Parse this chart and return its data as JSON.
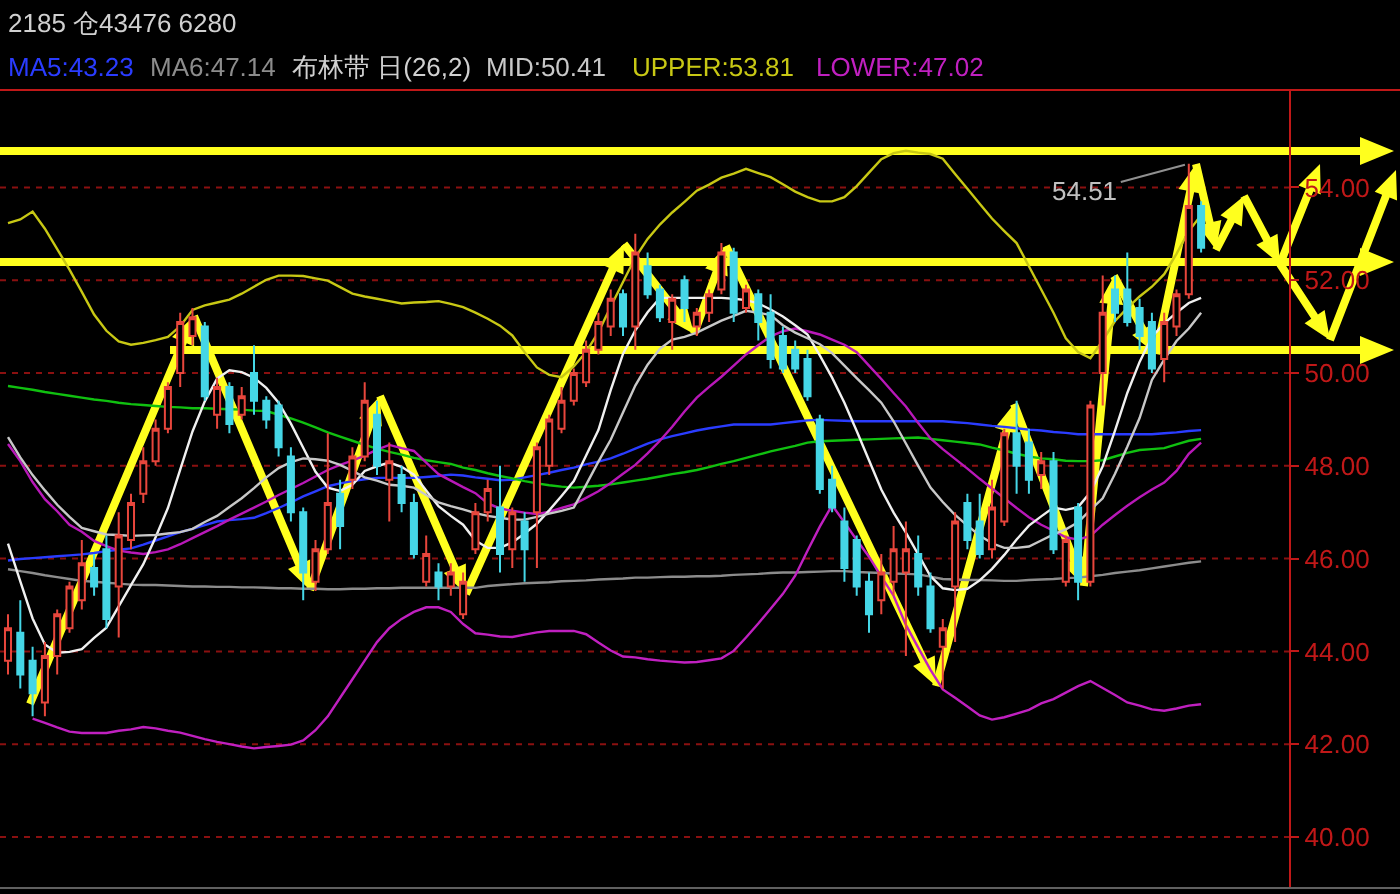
{
  "chart_data": {
    "type": "candlestick",
    "annotations": [
      "2185 仓43476 6280",
      "54.51"
    ],
    "legend": "top left",
    "legend_title": "布林带 日(26,2)",
    "tick_labels": "y",
    "grid": "y",
    "categories": [
      null,
      null,
      null,
      null,
      null,
      null,
      null,
      null,
      null,
      null,
      null,
      null,
      null,
      null,
      null,
      null,
      null,
      null,
      null,
      null,
      null,
      null,
      null,
      null,
      null,
      null,
      null,
      null,
      null,
      null,
      null,
      null,
      null,
      null,
      null,
      null,
      null,
      null,
      null,
      null,
      null,
      null,
      null,
      null,
      null,
      null,
      null,
      null,
      null,
      null,
      null,
      null,
      null,
      null,
      null,
      null,
      null,
      null,
      null,
      null,
      null,
      null,
      null,
      null,
      null,
      null,
      null,
      null,
      null,
      null,
      null,
      null,
      null,
      null,
      null,
      null,
      null,
      null,
      null,
      null,
      null,
      null,
      null,
      null,
      null,
      null,
      null,
      null,
      null,
      null,
      null,
      null,
      null,
      null,
      null,
      null,
      null,
      null
    ],
    "ohlc": [
      [
        43.8,
        44.8,
        43.5,
        44.5
      ],
      [
        44.4,
        45.1,
        43.2,
        43.5
      ],
      [
        43.8,
        44.1,
        42.6,
        43.1
      ],
      [
        42.9,
        44.2,
        42.6,
        43.9
      ],
      [
        43.9,
        44.9,
        43.5,
        44.8
      ],
      [
        44.5,
        45.5,
        44.4,
        45.4
      ],
      [
        45.1,
        46.4,
        44.9,
        45.9
      ],
      [
        45.8,
        46.1,
        45.2,
        45.4
      ],
      [
        46.2,
        46.5,
        44.5,
        44.7
      ],
      [
        45.4,
        47.0,
        44.3,
        46.5
      ],
      [
        46.4,
        47.4,
        46.2,
        47.2
      ],
      [
        47.4,
        48.4,
        47.2,
        48.1
      ],
      [
        48.1,
        49.0,
        48.0,
        48.8
      ],
      [
        48.8,
        49.8,
        48.7,
        49.7
      ],
      [
        50.0,
        51.3,
        49.7,
        51.1
      ],
      [
        50.8,
        51.4,
        50.6,
        51.2
      ],
      [
        51.0,
        51.1,
        49.4,
        49.5
      ],
      [
        49.1,
        49.9,
        48.8,
        49.7
      ],
      [
        49.7,
        49.8,
        48.7,
        48.9
      ],
      [
        49.1,
        49.7,
        49.0,
        49.5
      ],
      [
        50.0,
        50.6,
        49.1,
        49.4
      ],
      [
        49.4,
        49.5,
        48.8,
        49.0
      ],
      [
        49.3,
        49.4,
        48.2,
        48.4
      ],
      [
        48.2,
        48.4,
        46.8,
        47.0
      ],
      [
        47.0,
        47.1,
        45.1,
        45.7
      ],
      [
        45.5,
        46.4,
        45.3,
        46.2
      ],
      [
        46.2,
        48.7,
        46.1,
        47.2
      ],
      [
        47.4,
        47.7,
        46.2,
        46.7
      ],
      [
        47.7,
        48.4,
        47.5,
        48.2
      ],
      [
        48.2,
        49.8,
        48.1,
        49.4
      ],
      [
        49.1,
        49.4,
        47.8,
        48.0
      ],
      [
        47.7,
        48.5,
        46.8,
        48.1
      ],
      [
        47.8,
        48.0,
        47.0,
        47.2
      ],
      [
        47.2,
        47.4,
        46.0,
        46.1
      ],
      [
        45.5,
        46.5,
        45.4,
        46.1
      ],
      [
        45.7,
        45.9,
        45.1,
        45.4
      ],
      [
        45.4,
        45.9,
        45.2,
        45.7
      ],
      [
        44.8,
        45.7,
        44.7,
        45.5
      ],
      [
        46.2,
        47.2,
        46.1,
        47.0
      ],
      [
        47.0,
        47.7,
        46.8,
        47.5
      ],
      [
        47.1,
        48.0,
        45.7,
        46.1
      ],
      [
        46.2,
        47.1,
        45.8,
        47.0
      ],
      [
        46.8,
        47.0,
        45.5,
        46.2
      ],
      [
        47.0,
        48.5,
        45.8,
        48.4
      ],
      [
        48.0,
        49.1,
        47.8,
        49.0
      ],
      [
        48.8,
        49.7,
        48.7,
        49.4
      ],
      [
        49.4,
        50.1,
        49.3,
        50.0
      ],
      [
        49.8,
        50.7,
        49.7,
        50.5
      ],
      [
        50.5,
        51.3,
        50.4,
        51.1
      ],
      [
        51.0,
        51.8,
        50.8,
        51.6
      ],
      [
        51.7,
        51.8,
        50.8,
        51.0
      ],
      [
        51.0,
        53.0,
        50.5,
        52.6
      ],
      [
        52.3,
        52.6,
        51.6,
        51.7
      ],
      [
        51.8,
        51.9,
        51.1,
        51.2
      ],
      [
        51.1,
        51.7,
        50.5,
        51.6
      ],
      [
        52.0,
        52.1,
        51.1,
        51.4
      ],
      [
        51.0,
        51.4,
        50.8,
        51.3
      ],
      [
        51.3,
        51.8,
        51.1,
        51.7
      ],
      [
        51.8,
        52.8,
        51.7,
        52.6
      ],
      [
        52.6,
        52.7,
        51.1,
        51.3
      ],
      [
        51.4,
        51.9,
        51.3,
        51.8
      ],
      [
        51.7,
        51.8,
        50.7,
        51.1
      ],
      [
        51.3,
        51.7,
        50.1,
        50.3
      ],
      [
        50.8,
        51.0,
        50.0,
        50.1
      ],
      [
        50.5,
        50.7,
        50.0,
        50.1
      ],
      [
        50.3,
        50.5,
        49.4,
        49.5
      ],
      [
        49.0,
        49.1,
        47.4,
        47.5
      ],
      [
        47.7,
        48.0,
        47.0,
        47.1
      ],
      [
        46.8,
        47.1,
        45.5,
        45.8
      ],
      [
        46.4,
        46.5,
        45.2,
        45.4
      ],
      [
        45.5,
        45.7,
        44.4,
        44.8
      ],
      [
        45.1,
        46.1,
        44.8,
        45.7
      ],
      [
        45.5,
        46.7,
        45.2,
        46.2
      ],
      [
        45.7,
        46.8,
        43.9,
        46.2
      ],
      [
        46.1,
        46.5,
        45.2,
        45.4
      ],
      [
        45.4,
        45.7,
        44.4,
        44.5
      ],
      [
        44.1,
        44.7,
        43.2,
        44.5
      ],
      [
        45.4,
        47.0,
        44.2,
        46.8
      ],
      [
        47.2,
        47.4,
        46.2,
        46.4
      ],
      [
        46.8,
        47.4,
        46.0,
        46.1
      ],
      [
        46.2,
        47.7,
        46.0,
        47.1
      ],
      [
        46.8,
        48.8,
        46.7,
        48.7
      ],
      [
        48.7,
        49.4,
        47.4,
        48.0
      ],
      [
        48.5,
        48.8,
        47.4,
        47.7
      ],
      [
        47.8,
        48.3,
        47.5,
        48.1
      ],
      [
        48.1,
        48.3,
        46.1,
        46.2
      ],
      [
        45.5,
        46.5,
        45.4,
        46.4
      ],
      [
        47.1,
        47.2,
        45.1,
        45.5
      ],
      [
        45.5,
        49.4,
        45.4,
        49.3
      ],
      [
        50.0,
        52.1,
        49.3,
        51.3
      ],
      [
        51.8,
        52.1,
        51.1,
        51.3
      ],
      [
        51.8,
        52.6,
        51.0,
        51.1
      ],
      [
        51.4,
        51.6,
        50.5,
        50.8
      ],
      [
        51.1,
        51.3,
        50.0,
        50.1
      ],
      [
        50.3,
        51.3,
        49.8,
        51.1
      ],
      [
        51.0,
        51.8,
        50.8,
        51.7
      ],
      [
        51.7,
        54.51,
        51.6,
        53.6
      ],
      [
        53.6,
        53.7,
        52.6,
        52.7
      ]
    ],
    "colors": [
      "#e8463c",
      "#45d6e6",
      "#45d6e6",
      "#e8463c",
      "#e8463c",
      "#e8463c",
      "#e8463c",
      "#45d6e6",
      "#45d6e6",
      "#e8463c",
      "#e8463c",
      "#e8463c",
      "#e8463c",
      "#e8463c",
      "#e8463c",
      "#e8463c",
      "#45d6e6",
      "#e8463c",
      "#45d6e6",
      "#e8463c",
      "#45d6e6",
      "#45d6e6",
      "#45d6e6",
      "#45d6e6",
      "#45d6e6",
      "#e8463c",
      "#e8463c",
      "#45d6e6",
      "#e8463c",
      "#e8463c",
      "#45d6e6",
      "#e8463c",
      "#45d6e6",
      "#45d6e6",
      "#e8463c",
      "#45d6e6",
      "#e8463c",
      "#e8463c",
      "#e8463c",
      "#e8463c",
      "#45d6e6",
      "#e8463c",
      "#45d6e6",
      "#e8463c",
      "#e8463c",
      "#e8463c",
      "#e8463c",
      "#e8463c",
      "#e8463c",
      "#e8463c",
      "#45d6e6",
      "#e8463c",
      "#45d6e6",
      "#45d6e6",
      "#e8463c",
      "#45d6e6",
      "#e8463c",
      "#e8463c",
      "#e8463c",
      "#45d6e6",
      "#e8463c",
      "#45d6e6",
      "#45d6e6",
      "#45d6e6",
      "#45d6e6",
      "#45d6e6",
      "#45d6e6",
      "#45d6e6",
      "#45d6e6",
      "#45d6e6",
      "#45d6e6",
      "#e8463c",
      "#e8463c",
      "#e8463c",
      "#45d6e6",
      "#45d6e6",
      "#e8463c",
      "#e8463c",
      "#45d6e6",
      "#45d6e6",
      "#e8463c",
      "#e8463c",
      "#45d6e6",
      "#45d6e6",
      "#e8463c",
      "#45d6e6",
      "#e8463c",
      "#45d6e6",
      "#e8463c",
      "#e8463c",
      "#45d6e6",
      "#45d6e6",
      "#45d6e6",
      "#45d6e6",
      "#e8463c",
      "#e8463c",
      "#e8463c",
      "#45d6e6"
    ],
    "ylim": [
      38.9,
      56.1
    ],
    "yticks": [
      {
        "value": 40,
        "label": "40.00"
      },
      {
        "value": 42,
        "label": "42.00"
      },
      {
        "value": 44,
        "label": "44.00"
      },
      {
        "value": 46,
        "label": "46.00"
      },
      {
        "value": 48,
        "label": "48.00"
      },
      {
        "value": 50,
        "label": "50.00"
      },
      {
        "value": 52,
        "label": "52.00"
      },
      {
        "value": 54,
        "label": "54.00"
      }
    ],
    "series": [
      {
        "name": "MA5:43.23",
        "type": "line",
        "color": "#2a3cff",
        "values": [
          45.96,
          45.99,
          46.01,
          46.03,
          46.05,
          46.07,
          46.09,
          46.12,
          46.16,
          46.19,
          46.22,
          46.3,
          46.39,
          46.48,
          46.57,
          46.64,
          46.72,
          46.8,
          46.83,
          46.85,
          46.88,
          46.98,
          47.09,
          47.21,
          47.34,
          47.45,
          47.56,
          47.62,
          47.67,
          47.71,
          47.74,
          47.74,
          47.74,
          47.74,
          47.76,
          47.78,
          47.81,
          47.79,
          47.75,
          47.72,
          47.69,
          47.7,
          47.75,
          47.8,
          47.85,
          47.91,
          47.96,
          48.03,
          48.09,
          48.16,
          48.26,
          48.37,
          48.48,
          48.57,
          48.64,
          48.7,
          48.76,
          48.81,
          48.85,
          48.89,
          48.89,
          48.89,
          48.89,
          48.92,
          48.95,
          48.98,
          48.99,
          48.98,
          48.97,
          48.96,
          48.96,
          48.96,
          48.96,
          48.96,
          48.96,
          48.96,
          48.96,
          48.94,
          48.92,
          48.89,
          48.86,
          48.84,
          48.81,
          48.78,
          48.76,
          48.73,
          48.71,
          48.68,
          48.68,
          48.68,
          48.68,
          48.68,
          48.68,
          48.68,
          48.7,
          48.72,
          48.75,
          48.77
        ]
      },
      {
        "name": "MA6:47.14",
        "type": "line",
        "color": "#8c8c8c",
        "values": [
          45.77,
          45.73,
          45.69,
          45.64,
          45.6,
          45.56,
          45.52,
          45.5,
          45.48,
          45.46,
          45.44,
          45.43,
          45.43,
          45.42,
          45.41,
          45.4,
          45.4,
          45.39,
          45.39,
          45.38,
          45.38,
          45.37,
          45.36,
          45.36,
          45.35,
          45.35,
          45.34,
          45.34,
          45.35,
          45.35,
          45.36,
          45.36,
          45.37,
          45.37,
          45.37,
          45.37,
          45.37,
          45.37,
          45.37,
          45.41,
          45.43,
          45.45,
          45.47,
          45.48,
          45.49,
          45.51,
          45.52,
          45.53,
          45.55,
          45.56,
          45.57,
          45.59,
          45.59,
          45.6,
          45.61,
          45.61,
          45.62,
          45.62,
          45.63,
          45.65,
          45.66,
          45.67,
          45.69,
          45.7,
          45.7,
          45.71,
          45.72,
          45.73,
          45.73,
          45.71,
          45.7,
          45.69,
          45.68,
          45.67,
          45.66,
          45.61,
          45.56,
          45.55,
          45.54,
          45.54,
          45.53,
          45.52,
          45.52,
          45.54,
          45.55,
          45.56,
          45.58,
          45.59,
          45.62,
          45.65,
          45.69,
          45.72,
          45.75,
          45.79,
          45.83,
          45.87,
          45.91,
          45.94
        ]
      },
      {
        "type": "line",
        "color": "#10c010",
        "values": [
          49.72,
          49.68,
          49.64,
          49.59,
          49.55,
          49.51,
          49.47,
          49.43,
          49.4,
          49.36,
          49.33,
          49.31,
          49.29,
          49.27,
          49.26,
          49.24,
          49.24,
          49.23,
          49.22,
          49.21,
          49.19,
          49.18,
          49.1,
          49.02,
          48.93,
          48.83,
          48.72,
          48.63,
          48.54,
          48.45,
          48.37,
          48.3,
          48.24,
          48.17,
          48.12,
          48.08,
          48.04,
          47.96,
          47.91,
          47.84,
          47.78,
          47.73,
          47.67,
          47.62,
          47.58,
          47.55,
          47.53,
          47.55,
          47.57,
          47.6,
          47.64,
          47.68,
          47.72,
          47.77,
          47.82,
          47.86,
          47.91,
          47.97,
          48.04,
          48.1,
          48.17,
          48.24,
          48.31,
          48.37,
          48.43,
          48.5,
          48.53,
          48.54,
          48.55,
          48.56,
          48.57,
          48.58,
          48.59,
          48.6,
          48.61,
          48.58,
          48.55,
          48.52,
          48.49,
          48.46,
          48.39,
          48.33,
          48.26,
          48.2,
          48.16,
          48.14,
          48.11,
          48.1,
          48.1,
          48.12,
          48.2,
          48.28,
          48.34,
          48.36,
          48.38,
          48.46,
          48.54,
          48.58
        ]
      },
      {
        "type": "line",
        "color": "#b818b8",
        "values": [
          48.47,
          48.1,
          47.65,
          47.28,
          47.02,
          46.73,
          46.58,
          46.38,
          46.27,
          46.17,
          46.13,
          46.1,
          46.14,
          46.2,
          46.31,
          46.44,
          46.57,
          46.7,
          46.84,
          46.97,
          47.1,
          47.23,
          47.37,
          47.5,
          47.63,
          47.77,
          47.91,
          48.02,
          48.11,
          48.22,
          48.35,
          48.45,
          48.38,
          48.32,
          48.07,
          47.82,
          47.68,
          47.54,
          47.41,
          47.19,
          47.08,
          47.03,
          46.99,
          46.96,
          47.01,
          47.09,
          47.17,
          47.31,
          47.45,
          47.63,
          47.83,
          48.02,
          48.27,
          48.54,
          48.84,
          49.17,
          49.47,
          49.7,
          49.92,
          50.16,
          50.4,
          50.6,
          50.79,
          50.9,
          50.96,
          50.9,
          50.83,
          50.72,
          50.61,
          50.45,
          50.16,
          49.87,
          49.57,
          49.28,
          48.92,
          48.59,
          48.36,
          48.15,
          47.94,
          47.72,
          47.51,
          47.3,
          47.09,
          46.89,
          46.73,
          46.6,
          46.46,
          46.41,
          46.49,
          46.73,
          46.94,
          47.14,
          47.32,
          47.49,
          47.64,
          47.89,
          48.26,
          48.5
        ]
      },
      {
        "type": "line",
        "color": "#f0f0f0",
        "values": [
          46.32,
          45.51,
          44.71,
          44.15,
          43.97,
          43.99,
          44.05,
          44.29,
          44.51,
          44.97,
          45.43,
          45.88,
          46.46,
          47.09,
          47.92,
          48.74,
          49.39,
          49.88,
          50.06,
          50.02,
          49.9,
          49.68,
          49.36,
          48.91,
          48.39,
          47.87,
          47.53,
          47.46,
          47.59,
          47.89,
          47.99,
          48.07,
          47.98,
          47.81,
          47.47,
          47.13,
          46.92,
          46.73,
          46.39,
          46.23,
          46.23,
          46.35,
          46.54,
          46.75,
          47.04,
          47.35,
          47.67,
          48.22,
          48.77,
          49.63,
          50.41,
          50.92,
          51.31,
          51.62,
          51.62,
          51.62,
          51.62,
          51.62,
          51.62,
          51.6,
          51.57,
          51.5,
          51.37,
          51.22,
          51.03,
          50.83,
          50.38,
          49.9,
          49.36,
          48.75,
          48.12,
          47.49,
          46.99,
          46.56,
          46.09,
          45.62,
          45.36,
          45.32,
          45.35,
          45.53,
          45.78,
          46.08,
          46.41,
          46.71,
          46.91,
          47.1,
          47.05,
          47.11,
          47.43,
          47.99,
          48.76,
          49.57,
          50.24,
          50.78,
          51.07,
          51.3,
          51.51,
          51.62
        ]
      },
      {
        "name": "MID:50.41",
        "type": "line",
        "color": "#c8c8c8",
        "values": [
          48.62,
          48.18,
          47.8,
          47.47,
          47.16,
          46.9,
          46.66,
          46.59,
          46.52,
          46.51,
          46.49,
          46.5,
          46.51,
          46.54,
          46.57,
          46.64,
          46.79,
          46.92,
          47.11,
          47.3,
          47.52,
          47.75,
          47.95,
          48.08,
          48.16,
          48.14,
          48.11,
          48.02,
          47.89,
          47.75,
          47.68,
          47.59,
          47.57,
          47.53,
          47.37,
          47.21,
          47.13,
          47.06,
          46.98,
          46.92,
          46.88,
          46.84,
          46.84,
          46.9,
          46.97,
          47.03,
          47.1,
          47.59,
          48.09,
          48.56,
          49.15,
          49.73,
          50.18,
          50.52,
          50.72,
          50.78,
          50.87,
          51.0,
          51.13,
          51.23,
          51.34,
          51.3,
          51.25,
          51.03,
          50.87,
          50.75,
          50.62,
          50.43,
          50.16,
          49.89,
          49.63,
          49.36,
          48.96,
          48.48,
          48.0,
          47.53,
          47.22,
          46.94,
          46.71,
          46.5,
          46.33,
          46.23,
          46.23,
          46.26,
          46.39,
          46.52,
          46.63,
          46.78,
          47.05,
          47.3,
          47.83,
          48.41,
          49.03,
          49.85,
          50.29,
          50.69,
          50.96,
          51.3
        ]
      },
      {
        "name": "UPPER:53.81",
        "type": "line",
        "color": "#c8c814",
        "values": [
          53.23,
          53.31,
          53.48,
          53.11,
          52.67,
          52.23,
          51.75,
          51.26,
          50.91,
          50.68,
          50.61,
          50.65,
          50.71,
          50.78,
          51.01,
          51.36,
          51.46,
          51.52,
          51.58,
          51.71,
          51.86,
          52.01,
          52.1,
          52.1,
          52.09,
          52.04,
          51.99,
          51.85,
          51.71,
          51.65,
          51.6,
          51.55,
          51.5,
          51.52,
          51.53,
          51.55,
          51.49,
          51.42,
          51.3,
          51.17,
          51.02,
          50.81,
          50.45,
          50.12,
          49.96,
          49.91,
          50.14,
          50.45,
          50.88,
          51.43,
          51.96,
          52.49,
          52.89,
          53.2,
          53.46,
          53.69,
          53.93,
          54.06,
          54.21,
          54.3,
          54.4,
          54.31,
          54.22,
          54.07,
          53.91,
          53.79,
          53.7,
          53.7,
          53.79,
          54.03,
          54.32,
          54.61,
          54.74,
          54.79,
          54.75,
          54.72,
          54.62,
          54.29,
          53.97,
          53.65,
          53.33,
          53.06,
          52.8,
          52.3,
          51.8,
          51.3,
          50.75,
          50.45,
          50.32,
          50.7,
          51.12,
          51.4,
          51.65,
          51.86,
          52.13,
          52.57,
          53.06,
          53.4
        ]
      },
      {
        "name": "LOWER:47.02",
        "type": "line",
        "color": "#c020c0",
        "values": [
          null,
          null,
          42.55,
          42.46,
          42.36,
          42.27,
          42.24,
          42.24,
          42.24,
          42.29,
          42.32,
          42.37,
          42.34,
          42.29,
          42.25,
          42.18,
          42.11,
          42.05,
          42.0,
          41.95,
          41.91,
          41.94,
          41.96,
          41.99,
          42.08,
          42.3,
          42.6,
          43.0,
          43.4,
          43.8,
          44.2,
          44.5,
          44.7,
          44.85,
          44.95,
          44.95,
          44.85,
          44.59,
          44.39,
          44.36,
          44.32,
          44.31,
          44.36,
          44.41,
          44.44,
          44.44,
          44.44,
          44.37,
          44.19,
          44.02,
          43.89,
          43.87,
          43.83,
          43.8,
          43.78,
          43.76,
          43.77,
          43.81,
          43.85,
          44.01,
          44.3,
          44.6,
          44.92,
          45.24,
          45.63,
          46.17,
          46.69,
          47.15,
          46.78,
          46.4,
          46.04,
          45.61,
          45.2,
          44.57,
          44.08,
          43.6,
          43.18,
          43.0,
          42.81,
          42.62,
          42.53,
          42.58,
          42.66,
          42.74,
          42.88,
          42.97,
          43.11,
          43.25,
          43.36,
          43.21,
          43.06,
          42.9,
          42.83,
          42.75,
          42.72,
          42.77,
          42.83,
          42.86
        ]
      }
    ]
  }
}
